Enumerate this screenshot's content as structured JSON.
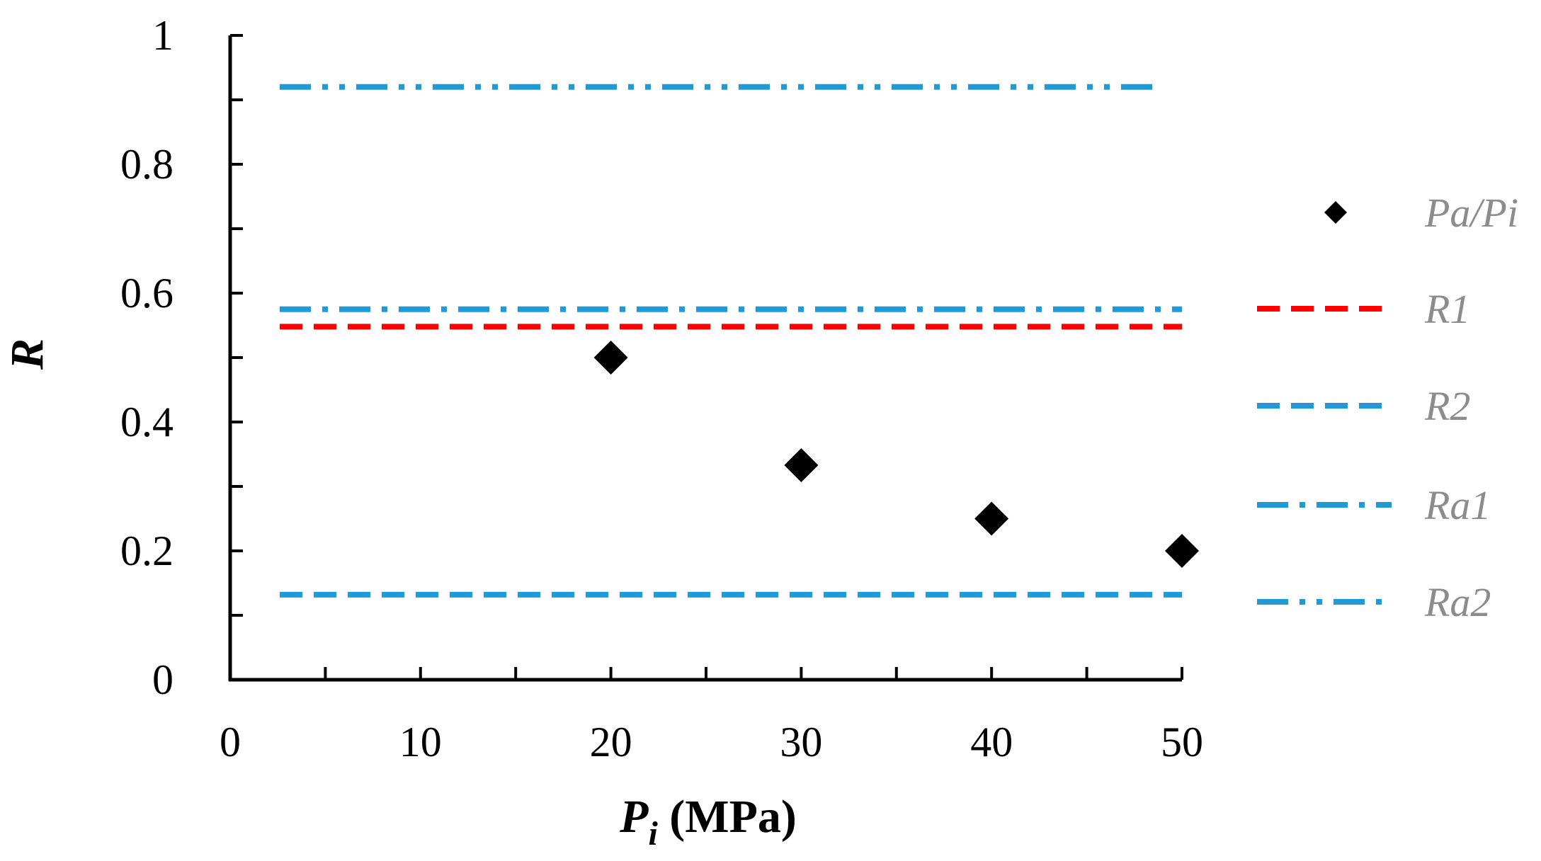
{
  "chart_data": {
    "type": "scatter",
    "title": "",
    "xlabel": {
      "main": "P",
      "sub": "i",
      "units": " (MPa)"
    },
    "ylabel": "R",
    "xlim": [
      0,
      50
    ],
    "ylim": [
      0,
      1
    ],
    "x_ticks": [
      0,
      10,
      20,
      30,
      40,
      50
    ],
    "x_tick_labels": [
      "0",
      "10",
      "20",
      "30",
      "40",
      "50"
    ],
    "x_minor_step": 5,
    "y_ticks": [
      0,
      0.2,
      0.4,
      0.6,
      0.8,
      1
    ],
    "y_tick_labels": [
      "0",
      "0.2",
      "0.4",
      "0.6",
      "0.8",
      "1"
    ],
    "y_minor_step": 0.1,
    "grid": false,
    "legend_position": "right",
    "series": [
      {
        "name": "Pa/Pi",
        "kind": "points",
        "marker": "diamond",
        "color": "#000000",
        "x": [
          20,
          30,
          40,
          50
        ],
        "y": [
          0.5,
          0.333,
          0.25,
          0.2
        ]
      },
      {
        "name": "R1",
        "kind": "hline",
        "style": "dash",
        "color": "#ff0000",
        "y": 0.548,
        "x": [
          0,
          50
        ]
      },
      {
        "name": "R2",
        "kind": "hline",
        "style": "dash",
        "color": "#1f9ad6",
        "y": 0.132,
        "x": [
          0,
          50
        ]
      },
      {
        "name": "Ra1",
        "kind": "hline",
        "style": "dashdot",
        "color": "#1f9ad6",
        "y": 0.575,
        "x": [
          0,
          50
        ]
      },
      {
        "name": "Ra2",
        "kind": "hline",
        "style": "dashdotdot",
        "color": "#1f9ad6",
        "y": 0.92,
        "x": [
          0,
          49
        ]
      }
    ]
  }
}
